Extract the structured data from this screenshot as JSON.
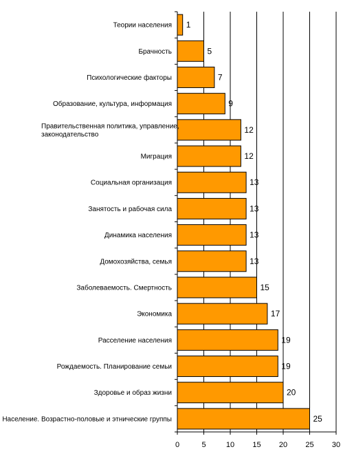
{
  "chart_data": {
    "type": "bar",
    "orientation": "horizontal",
    "title": "",
    "xlabel": "",
    "ylabel": "",
    "xlim": [
      0,
      30
    ],
    "xticks": [
      0,
      5,
      10,
      15,
      20,
      25,
      30
    ],
    "grid": "vertical",
    "legend": "none",
    "bar_color": "#FF9900",
    "categories": [
      [
        "Теории населения"
      ],
      [
        "Брачность"
      ],
      [
        "Психологические факторы"
      ],
      [
        "Образование, культура, информация"
      ],
      [
        "Правительственная политика, управление,",
        "законодательство"
      ],
      [
        "Миграция"
      ],
      [
        "Социальная организация"
      ],
      [
        "Занятость и рабочая сила"
      ],
      [
        "Динамика населения"
      ],
      [
        "Домохозяйства, семья"
      ],
      [
        "Заболеваемость. Смертность"
      ],
      [
        "Экономика"
      ],
      [
        "Расселение населения"
      ],
      [
        "Рождаемость. Планирование семьи"
      ],
      [
        "Здоровье и образ жизни"
      ],
      [
        "Население. Возрастно-половые и этнические группы"
      ]
    ],
    "values": [
      1,
      5,
      7,
      9,
      12,
      12,
      13,
      13,
      13,
      13,
      15,
      17,
      19,
      19,
      20,
      25
    ]
  }
}
